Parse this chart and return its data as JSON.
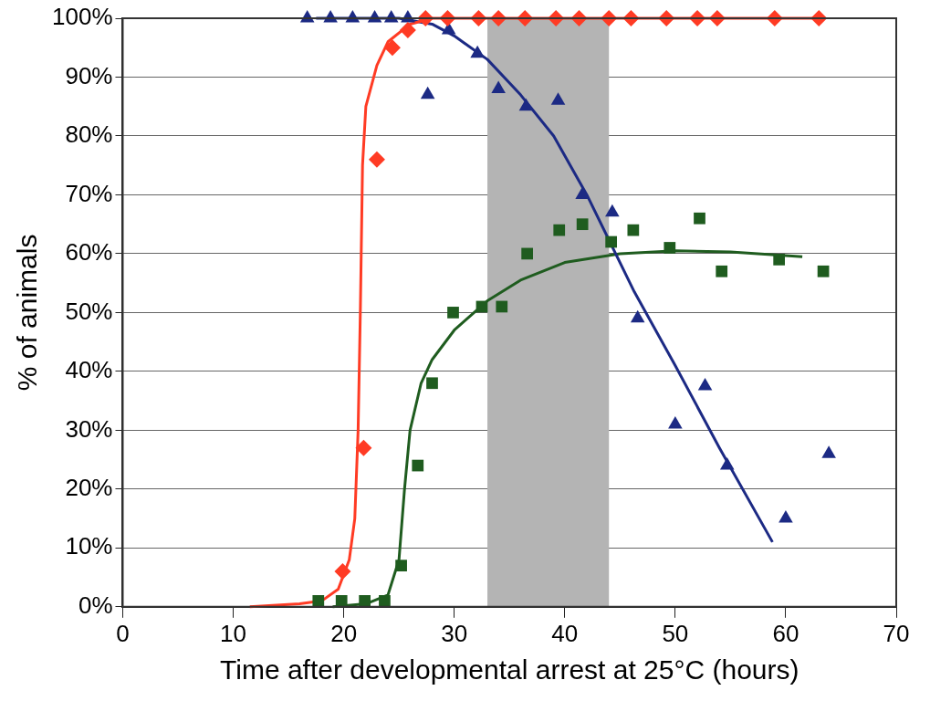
{
  "chart_data": {
    "type": "scatter",
    "xlabel": "Time after developmental arrest at 25°C (hours)",
    "ylabel": "% of animals",
    "xlim": [
      0,
      70
    ],
    "xticks": [
      0,
      10,
      20,
      30,
      40,
      50,
      60,
      70
    ],
    "ylim": [
      0,
      100
    ],
    "yticks": [
      {
        "value": 0,
        "label": "0%"
      },
      {
        "value": 10,
        "label": "10%"
      },
      {
        "value": 20,
        "label": "20%"
      },
      {
        "value": 30,
        "label": "30%"
      },
      {
        "value": 40,
        "label": "40%"
      },
      {
        "value": 50,
        "label": "50%"
      },
      {
        "value": 60,
        "label": "60%"
      },
      {
        "value": 70,
        "label": "70%"
      },
      {
        "value": 80,
        "label": "80%"
      },
      {
        "value": 90,
        "label": "90%"
      },
      {
        "value": 100,
        "label": "100%"
      }
    ],
    "grid": "y",
    "legend": false,
    "bands": [
      {
        "axis": "x",
        "from": 33,
        "to": 44,
        "color": "#b4b4b4"
      }
    ],
    "series": [
      {
        "type": "line",
        "marker": "none",
        "color": "#ff3b24",
        "x": [
          11.5,
          16,
          18,
          19.5,
          20.5,
          21,
          21.3,
          21.5,
          21.7,
          22,
          23,
          24,
          26,
          28,
          40,
          50,
          63
        ],
        "values": [
          0,
          0.5,
          1,
          3,
          8,
          15,
          30,
          50,
          75,
          85,
          92,
          96,
          99,
          100,
          100,
          100,
          100
        ]
      },
      {
        "type": "line",
        "marker": "none",
        "color": "#1c2a84",
        "x": [
          17.5,
          25,
          28,
          30,
          33,
          36,
          39,
          42,
          46.3,
          50,
          54,
          58.8
        ],
        "values": [
          100,
          100,
          99,
          97,
          93,
          87,
          80,
          70,
          53.5,
          41,
          27,
          11
        ]
      },
      {
        "type": "line",
        "marker": "none",
        "color": "#1f5c1f",
        "x": [
          19,
          22,
          24,
          25,
          25.5,
          26,
          27,
          28,
          30,
          33,
          36,
          40,
          45,
          50,
          55,
          61.5
        ],
        "values": [
          0,
          0.5,
          2,
          8,
          20,
          30,
          38,
          42,
          47,
          52,
          55.5,
          58.5,
          60,
          60.5,
          60.3,
          59.5
        ]
      },
      {
        "marker": "diamond",
        "color": "#ff3b24",
        "x": [
          19.9,
          21.8,
          23,
          24.4,
          25.8,
          27.4,
          29.4,
          32.2,
          34,
          36.4,
          39.2,
          41.3,
          44,
          46,
          49.2,
          52,
          53.8,
          59,
          63
        ],
        "values": [
          6,
          27,
          76,
          95,
          98,
          100,
          100,
          100,
          100,
          100,
          100,
          100,
          100,
          100,
          100,
          100,
          100,
          100,
          100
        ]
      },
      {
        "marker": "triangle",
        "color": "#1c2a84",
        "x": [
          16.7,
          18.8,
          20.8,
          22.8,
          24.3,
          25.8,
          27.6,
          29.5,
          32.1,
          34,
          36.5,
          39.4,
          41.6,
          44.3,
          46.6,
          50,
          52.7,
          54.7,
          60,
          63.9
        ],
        "values": [
          100,
          100,
          100,
          100,
          100,
          100,
          87,
          98,
          94,
          88,
          85,
          86,
          70,
          67,
          49,
          31,
          37.5,
          24,
          15,
          26
        ]
      },
      {
        "marker": "square",
        "color": "#1f5c1f",
        "x": [
          17.7,
          19.8,
          21.9,
          23.7,
          25.2,
          26.7,
          28,
          29.9,
          32.5,
          34.3,
          36.6,
          39.5,
          41.6,
          44.2,
          46.2,
          49.5,
          52.2,
          54.2,
          59.4,
          63.4
        ],
        "values": [
          1,
          1,
          1,
          1,
          7,
          24,
          38,
          50,
          51,
          51,
          60,
          64,
          65,
          62,
          64,
          61,
          66,
          57,
          59,
          57
        ]
      }
    ]
  }
}
